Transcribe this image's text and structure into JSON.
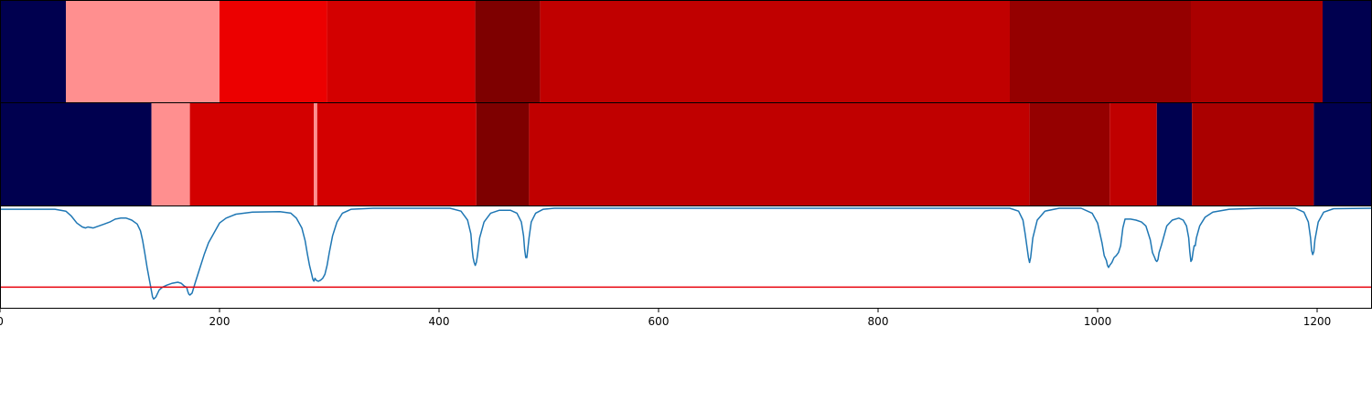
{
  "chart_data": {
    "type": "heatmap",
    "x_range": [
      0,
      1250
    ],
    "x_ticks": [
      0,
      200,
      400,
      600,
      800,
      1000,
      1200
    ],
    "x_tick_labels": [
      "0",
      "200",
      "400",
      "600",
      "800",
      "1000",
      "1200"
    ],
    "colors": {
      "navy": "#00004f",
      "pink": "#ff8f8f",
      "bright_red": "#ec0000",
      "red": "#d30000",
      "dark_maroon": "#7e0000",
      "crimson": "#c00000",
      "deep_red": "#950000",
      "dark_red": "#aa0000",
      "line": "#1f77b4",
      "threshold": "#e8000b"
    },
    "segment_tracks": [
      {
        "segments": [
          {
            "start": 0,
            "end": 60,
            "color": "navy"
          },
          {
            "start": 60,
            "end": 200,
            "color": "pink"
          },
          {
            "start": 200,
            "end": 298,
            "color": "bright_red"
          },
          {
            "start": 298,
            "end": 433,
            "color": "red"
          },
          {
            "start": 433,
            "end": 492,
            "color": "dark_maroon"
          },
          {
            "start": 492,
            "end": 920,
            "color": "crimson"
          },
          {
            "start": 920,
            "end": 1085,
            "color": "deep_red"
          },
          {
            "start": 1085,
            "end": 1205,
            "color": "dark_red"
          },
          {
            "start": 1205,
            "end": 1250,
            "color": "navy"
          }
        ]
      },
      {
        "segments": [
          {
            "start": 0,
            "end": 138,
            "color": "navy"
          },
          {
            "start": 138,
            "end": 173,
            "color": "pink"
          },
          {
            "start": 173,
            "end": 286,
            "color": "red"
          },
          {
            "start": 286,
            "end": 289,
            "color": "pink"
          },
          {
            "start": 289,
            "end": 434,
            "color": "red"
          },
          {
            "start": 434,
            "end": 482,
            "color": "dark_maroon"
          },
          {
            "start": 482,
            "end": 938,
            "color": "crimson"
          },
          {
            "start": 938,
            "end": 1011,
            "color": "deep_red"
          },
          {
            "start": 1011,
            "end": 1054,
            "color": "crimson"
          },
          {
            "start": 1054,
            "end": 1086,
            "color": "navy"
          },
          {
            "start": 1086,
            "end": 1197,
            "color": "dark_red"
          },
          {
            "start": 1197,
            "end": 1250,
            "color": "navy"
          }
        ]
      }
    ],
    "line": {
      "y_range": [
        0,
        1
      ],
      "threshold": 0.2,
      "points": [
        [
          0,
          0.99
        ],
        [
          30,
          0.99
        ],
        [
          50,
          0.99
        ],
        [
          60,
          0.97
        ],
        [
          65,
          0.92
        ],
        [
          70,
          0.85
        ],
        [
          75,
          0.81
        ],
        [
          78,
          0.8
        ],
        [
          80,
          0.81
        ],
        [
          85,
          0.8
        ],
        [
          90,
          0.82
        ],
        [
          95,
          0.84
        ],
        [
          100,
          0.86
        ],
        [
          105,
          0.89
        ],
        [
          110,
          0.9
        ],
        [
          115,
          0.9
        ],
        [
          120,
          0.88
        ],
        [
          125,
          0.84
        ],
        [
          128,
          0.77
        ],
        [
          130,
          0.67
        ],
        [
          132,
          0.54
        ],
        [
          134,
          0.4
        ],
        [
          136,
          0.28
        ],
        [
          137,
          0.22
        ],
        [
          138,
          0.16
        ],
        [
          139,
          0.1
        ],
        [
          140,
          0.08
        ],
        [
          142,
          0.1
        ],
        [
          145,
          0.17
        ],
        [
          148,
          0.2
        ],
        [
          152,
          0.22
        ],
        [
          157,
          0.24
        ],
        [
          162,
          0.25
        ],
        [
          165,
          0.24
        ],
        [
          168,
          0.21
        ],
        [
          170,
          0.2
        ],
        [
          171,
          0.16
        ],
        [
          172,
          0.13
        ],
        [
          173,
          0.12
        ],
        [
          175,
          0.14
        ],
        [
          178,
          0.25
        ],
        [
          182,
          0.39
        ],
        [
          186,
          0.53
        ],
        [
          190,
          0.65
        ],
        [
          195,
          0.75
        ],
        [
          200,
          0.85
        ],
        [
          206,
          0.9
        ],
        [
          215,
          0.94
        ],
        [
          230,
          0.96
        ],
        [
          255,
          0.965
        ],
        [
          265,
          0.95
        ],
        [
          270,
          0.9
        ],
        [
          275,
          0.8
        ],
        [
          278,
          0.67
        ],
        [
          280,
          0.54
        ],
        [
          282,
          0.42
        ],
        [
          284,
          0.33
        ],
        [
          285,
          0.28
        ],
        [
          286,
          0.26
        ],
        [
          287,
          0.29
        ],
        [
          288,
          0.27
        ],
        [
          290,
          0.26
        ],
        [
          292,
          0.27
        ],
        [
          294,
          0.29
        ],
        [
          296,
          0.33
        ],
        [
          298,
          0.42
        ],
        [
          300,
          0.55
        ],
        [
          303,
          0.72
        ],
        [
          307,
          0.86
        ],
        [
          312,
          0.95
        ],
        [
          320,
          0.99
        ],
        [
          340,
          1.0
        ],
        [
          410,
          1.0
        ],
        [
          420,
          0.97
        ],
        [
          426,
          0.88
        ],
        [
          429,
          0.74
        ],
        [
          430,
          0.6
        ],
        [
          431,
          0.5
        ],
        [
          432,
          0.45
        ],
        [
          433,
          0.42
        ],
        [
          434,
          0.45
        ],
        [
          435,
          0.52
        ],
        [
          437,
          0.7
        ],
        [
          441,
          0.86
        ],
        [
          447,
          0.95
        ],
        [
          455,
          0.98
        ],
        [
          465,
          0.98
        ],
        [
          471,
          0.95
        ],
        [
          475,
          0.86
        ],
        [
          477,
          0.72
        ],
        [
          478,
          0.58
        ],
        [
          479,
          0.5
        ],
        [
          480,
          0.5
        ],
        [
          481,
          0.6
        ],
        [
          482,
          0.7
        ],
        [
          484,
          0.86
        ],
        [
          488,
          0.95
        ],
        [
          495,
          0.99
        ],
        [
          505,
          1.0
        ],
        [
          920,
          1.0
        ],
        [
          928,
          0.97
        ],
        [
          932,
          0.88
        ],
        [
          934,
          0.74
        ],
        [
          936,
          0.58
        ],
        [
          937,
          0.5
        ],
        [
          938,
          0.45
        ],
        [
          939,
          0.5
        ],
        [
          941,
          0.7
        ],
        [
          945,
          0.88
        ],
        [
          952,
          0.97
        ],
        [
          965,
          1.0
        ],
        [
          985,
          1.0
        ],
        [
          995,
          0.95
        ],
        [
          1000,
          0.85
        ],
        [
          1004,
          0.65
        ],
        [
          1006,
          0.52
        ],
        [
          1008,
          0.47
        ],
        [
          1009,
          0.42
        ],
        [
          1010,
          0.4
        ],
        [
          1011,
          0.42
        ],
        [
          1013,
          0.45
        ],
        [
          1015,
          0.5
        ],
        [
          1017,
          0.52
        ],
        [
          1019,
          0.55
        ],
        [
          1021,
          0.62
        ],
        [
          1023,
          0.8
        ],
        [
          1025,
          0.89
        ],
        [
          1030,
          0.89
        ],
        [
          1035,
          0.88
        ],
        [
          1040,
          0.86
        ],
        [
          1044,
          0.82
        ],
        [
          1046,
          0.75
        ],
        [
          1048,
          0.68
        ],
        [
          1050,
          0.55
        ],
        [
          1052,
          0.5
        ],
        [
          1053,
          0.47
        ],
        [
          1054,
          0.46
        ],
        [
          1055,
          0.48
        ],
        [
          1056,
          0.55
        ],
        [
          1058,
          0.62
        ],
        [
          1060,
          0.7
        ],
        [
          1063,
          0.82
        ],
        [
          1068,
          0.88
        ],
        [
          1074,
          0.9
        ],
        [
          1078,
          0.88
        ],
        [
          1081,
          0.82
        ],
        [
          1083,
          0.7
        ],
        [
          1084,
          0.56
        ],
        [
          1085,
          0.46
        ],
        [
          1086,
          0.48
        ],
        [
          1087,
          0.56
        ],
        [
          1088,
          0.62
        ],
        [
          1089,
          0.62
        ],
        [
          1090,
          0.7
        ],
        [
          1093,
          0.82
        ],
        [
          1098,
          0.91
        ],
        [
          1105,
          0.96
        ],
        [
          1120,
          0.99
        ],
        [
          1150,
          1.0
        ],
        [
          1180,
          1.0
        ],
        [
          1188,
          0.96
        ],
        [
          1192,
          0.86
        ],
        [
          1194,
          0.7
        ],
        [
          1195,
          0.57
        ],
        [
          1196,
          0.53
        ],
        [
          1197,
          0.56
        ],
        [
          1198,
          0.68
        ],
        [
          1201,
          0.86
        ],
        [
          1206,
          0.96
        ],
        [
          1215,
          0.995
        ],
        [
          1250,
          1.0
        ]
      ]
    }
  }
}
